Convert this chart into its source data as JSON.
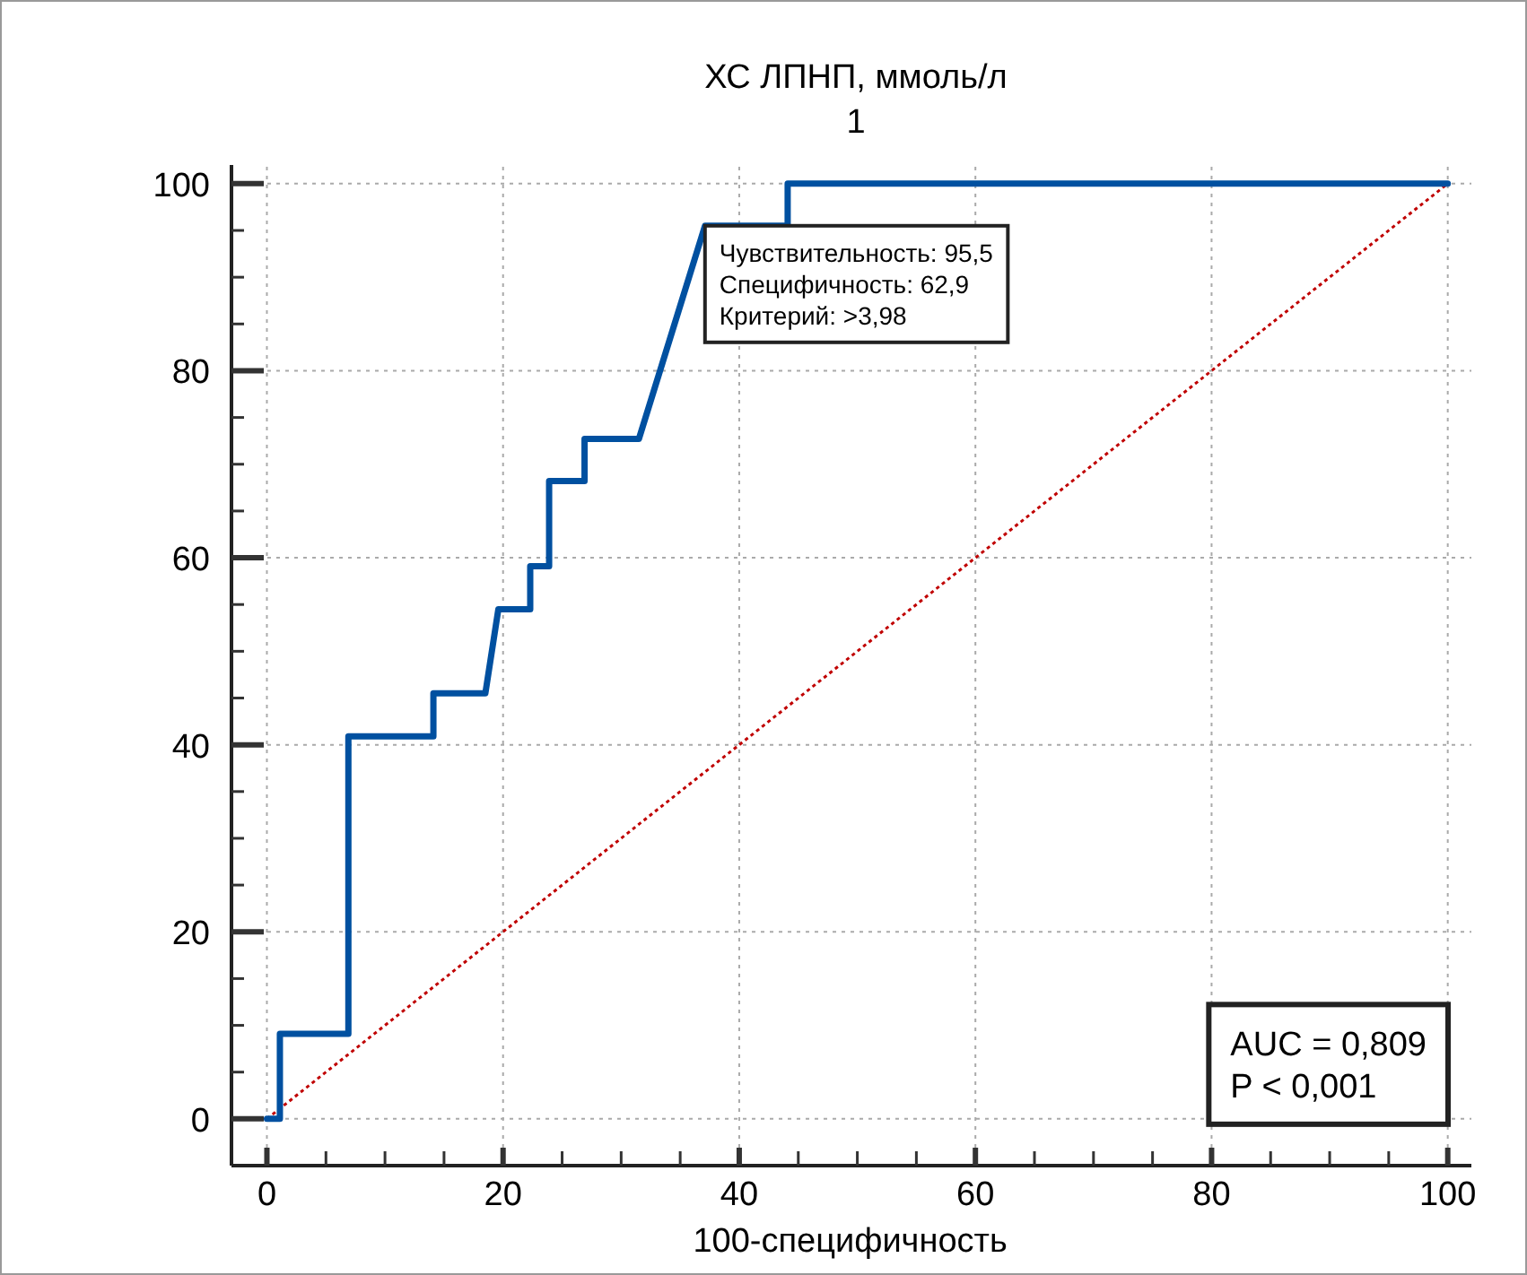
{
  "chart_data": {
    "type": "line",
    "title": "ХС ЛПНП, ммоль/л",
    "subtitle": "1",
    "xlabel": "100-специфичность",
    "xlim": [
      -3,
      102
    ],
    "ylim": [
      -5,
      102
    ],
    "xticks": [
      0,
      {
        "value": 5,
        "label": null
      },
      {
        "value": 10,
        "label": null
      },
      {
        "value": 15,
        "label": null
      },
      20,
      {
        "value": 25,
        "label": null
      },
      {
        "value": 30,
        "label": null
      },
      {
        "value": 35,
        "label": null
      },
      40,
      {
        "value": 45,
        "label": null
      },
      {
        "value": 50,
        "label": null
      },
      {
        "value": 55,
        "label": null
      },
      60,
      {
        "value": 65,
        "label": null
      },
      {
        "value": 70,
        "label": null
      },
      {
        "value": 75,
        "label": null
      },
      80,
      {
        "value": 85,
        "label": null
      },
      {
        "value": 90,
        "label": null
      },
      {
        "value": 95,
        "label": null
      },
      100
    ],
    "yticks": [
      0,
      {
        "value": 5,
        "label": null
      },
      {
        "value": 10,
        "label": null
      },
      {
        "value": 15,
        "label": null
      },
      20,
      {
        "value": 25,
        "label": null
      },
      {
        "value": 30,
        "label": null
      },
      {
        "value": 35,
        "label": null
      },
      40,
      {
        "value": 45,
        "label": null
      },
      {
        "value": 50,
        "label": null
      },
      {
        "value": 55,
        "label": null
      },
      60,
      {
        "value": 65,
        "label": null
      },
      {
        "value": 70,
        "label": null
      },
      {
        "value": 75,
        "label": null
      },
      80,
      {
        "value": 85,
        "label": null
      },
      {
        "value": 90,
        "label": null
      },
      {
        "value": 95,
        "label": null
      },
      100
    ],
    "grid": true,
    "marker": "none",
    "series": [
      {
        "color": "#0050a0",
        "line_style": "solid",
        "x": [
          0,
          1.1,
          1.1,
          6.9,
          6.9,
          14.1,
          14.1,
          18.5,
          19.6,
          22.3,
          22.3,
          23.9,
          23.9,
          26.9,
          26.9,
          31.5,
          37.1,
          44.1,
          44.1,
          100
        ],
        "values": [
          0,
          0,
          9.1,
          9.1,
          40.9,
          40.9,
          45.5,
          45.5,
          54.5,
          54.5,
          59.1,
          59.1,
          68.2,
          68.2,
          72.7,
          72.7,
          95.5,
          95.5,
          100,
          100
        ]
      },
      {
        "color": "#c00000",
        "line_style": "dotted",
        "x": [
          0,
          100
        ],
        "values": [
          0,
          100
        ]
      }
    ],
    "annotations": [
      {
        "text": "Чувствительность: 95,5\nСпецифичность: 62,9\nКритерий: >3,98",
        "x": 37.1,
        "y": 95.5
      },
      "AUC = 0,809\nP < 0,001"
    ]
  }
}
